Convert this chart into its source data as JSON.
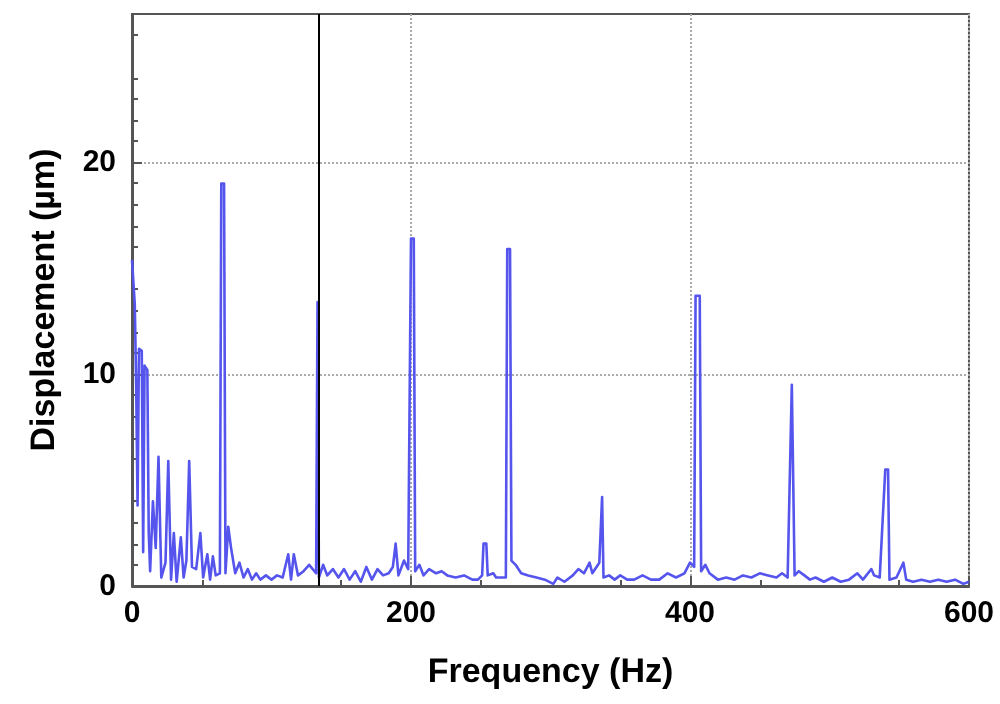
{
  "chart_data": {
    "type": "line",
    "xlabel": "Frequency (Hz)",
    "ylabel": "Displacement (µm)",
    "xlim": [
      0,
      600
    ],
    "xticks": [
      0,
      200,
      400,
      600
    ],
    "ylim": [
      0,
      27
    ],
    "yticks": [
      0,
      10,
      20
    ],
    "grid": true,
    "marker": "none",
    "line_style": "solid",
    "ref_lines": [
      {
        "axis": "x",
        "value": 133,
        "color": "#000000"
      }
    ],
    "series": [
      {
        "color": "#5555ee",
        "x": [
          0,
          2,
          3,
          4,
          5,
          7,
          8,
          9,
          11,
          12,
          13,
          15,
          17,
          19,
          21,
          24,
          26,
          28,
          30,
          32,
          35,
          37,
          39,
          41,
          43,
          46,
          49,
          51,
          54,
          56,
          58,
          60,
          63,
          64,
          66,
          67,
          69,
          71,
          74,
          77,
          80,
          83,
          86,
          89,
          92,
          96,
          100,
          104,
          108,
          112,
          114,
          116,
          119,
          123,
          127,
          132,
          133,
          134,
          137,
          140,
          144,
          148,
          152,
          156,
          160,
          164,
          168,
          172,
          176,
          180,
          184,
          187,
          189,
          191,
          195,
          198,
          200,
          202,
          203,
          206,
          209,
          213,
          218,
          222,
          226,
          232,
          238,
          244,
          248,
          251,
          252,
          254,
          255,
          259,
          261,
          268,
          269,
          271,
          272,
          275,
          279,
          284,
          290,
          296,
          302,
          305,
          310,
          316,
          320,
          324,
          328,
          330,
          335,
          337,
          338,
          342,
          346,
          350,
          355,
          360,
          366,
          372,
          378,
          384,
          390,
          396,
          400,
          403,
          404,
          407,
          408,
          411,
          414,
          420,
          426,
          432,
          438,
          444,
          450,
          456,
          462,
          466,
          470,
          473,
          474,
          475,
          478,
          482,
          486,
          490,
          496,
          502,
          508,
          514,
          520,
          524,
          530,
          532,
          536,
          540,
          542,
          543,
          548,
          553,
          555,
          560,
          566,
          572,
          578,
          584,
          590,
          596,
          600
        ],
        "values": [
          15.4,
          13.3,
          9.4,
          3.8,
          11.2,
          11.1,
          1.6,
          10.4,
          10.2,
          2.5,
          0.7,
          4.0,
          1.8,
          6.1,
          0.4,
          1.1,
          5.9,
          0.3,
          2.5,
          0.2,
          2.3,
          0.4,
          1.2,
          5.9,
          0.9,
          0.8,
          2.5,
          0.4,
          1.5,
          0.3,
          1.4,
          0.5,
          0.6,
          19.0,
          19.0,
          0.6,
          2.8,
          1.8,
          0.6,
          1.1,
          0.4,
          0.8,
          0.3,
          0.6,
          0.3,
          0.5,
          0.3,
          0.5,
          0.4,
          1.5,
          0.3,
          1.5,
          0.5,
          0.7,
          1.0,
          0.6,
          13.4,
          0.4,
          1.0,
          0.5,
          0.8,
          0.4,
          0.8,
          0.3,
          0.7,
          0.2,
          0.9,
          0.3,
          0.8,
          0.5,
          0.6,
          0.9,
          2.0,
          0.5,
          1.2,
          0.8,
          16.4,
          16.4,
          0.7,
          1.0,
          0.5,
          0.8,
          0.6,
          0.7,
          0.5,
          0.4,
          0.5,
          0.3,
          0.3,
          0.5,
          2.0,
          2.0,
          0.5,
          0.6,
          0.4,
          0.4,
          15.9,
          15.9,
          1.2,
          1.0,
          0.6,
          0.5,
          0.4,
          0.3,
          0.1,
          0.4,
          0.2,
          0.5,
          0.8,
          0.6,
          1.1,
          0.6,
          1.1,
          4.2,
          0.4,
          0.5,
          0.3,
          0.5,
          0.3,
          0.3,
          0.5,
          0.3,
          0.3,
          0.6,
          0.4,
          0.6,
          1.1,
          0.9,
          13.7,
          13.7,
          0.7,
          1.0,
          0.6,
          0.3,
          0.4,
          0.3,
          0.5,
          0.4,
          0.6,
          0.5,
          0.4,
          0.6,
          0.4,
          9.5,
          9.5,
          0.5,
          0.7,
          0.5,
          0.3,
          0.4,
          0.2,
          0.4,
          0.2,
          0.3,
          0.6,
          0.3,
          0.8,
          0.5,
          0.4,
          5.5,
          5.5,
          0.3,
          0.4,
          1.1,
          0.3,
          0.2,
          0.3,
          0.2,
          0.3,
          0.2,
          0.3,
          0.1,
          0.2
        ]
      }
    ]
  }
}
